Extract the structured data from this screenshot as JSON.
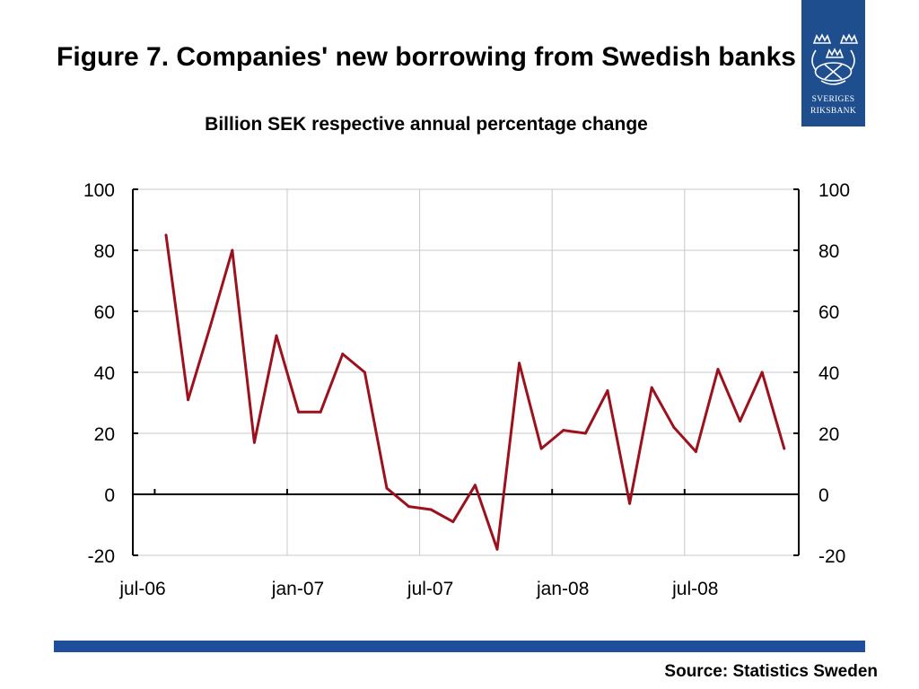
{
  "title": "Figure 7. Companies' new borrowing from Swedish banks",
  "subtitle": "Billion SEK respective annual percentage change",
  "source": "Source: Statistics Sweden",
  "logo": {
    "line1": "SVERIGES",
    "line2": "RIKSBANK",
    "color": "#1f4e8f"
  },
  "colors": {
    "series": "#9b111e",
    "accent_bar": "#1f4e9a",
    "grid": "#c8c8c8"
  },
  "chart_data": {
    "type": "line",
    "title": "Figure 7. Companies' new borrowing from Swedish banks",
    "subtitle": "Billion SEK respective annual percentage change",
    "xlabel": "",
    "ylabel": "",
    "ylim": [
      -20,
      100
    ],
    "yticks": [
      100,
      80,
      60,
      40,
      20,
      0,
      -20
    ],
    "xtick_labels": [
      "jul-06",
      "jan-07",
      "jul-07",
      "jan-08",
      "jul-08"
    ],
    "grid": true,
    "legend": "none",
    "dual_y_axis": true,
    "x": [
      "aug-06",
      "sep-06",
      "oct-06",
      "nov-06",
      "dec-06",
      "jan-07",
      "feb-07",
      "mar-07",
      "apr-07",
      "may-07",
      "jun-07",
      "jul-07",
      "aug-07",
      "sep-07",
      "oct-07",
      "nov-07",
      "dec-07",
      "jan-08",
      "feb-08",
      "mar-08",
      "apr-08",
      "may-08",
      "jun-08",
      "jul-08",
      "aug-08",
      "sep-08",
      "oct-08",
      "nov-08",
      "dec-08"
    ],
    "series": [
      {
        "values": [
          85,
          31,
          55,
          80,
          17,
          52,
          27,
          27,
          46,
          40,
          2,
          -4,
          -5,
          -9,
          3,
          -18,
          43,
          15,
          21,
          20,
          34,
          -3,
          35,
          22,
          14,
          41,
          24,
          40,
          15
        ]
      }
    ]
  }
}
